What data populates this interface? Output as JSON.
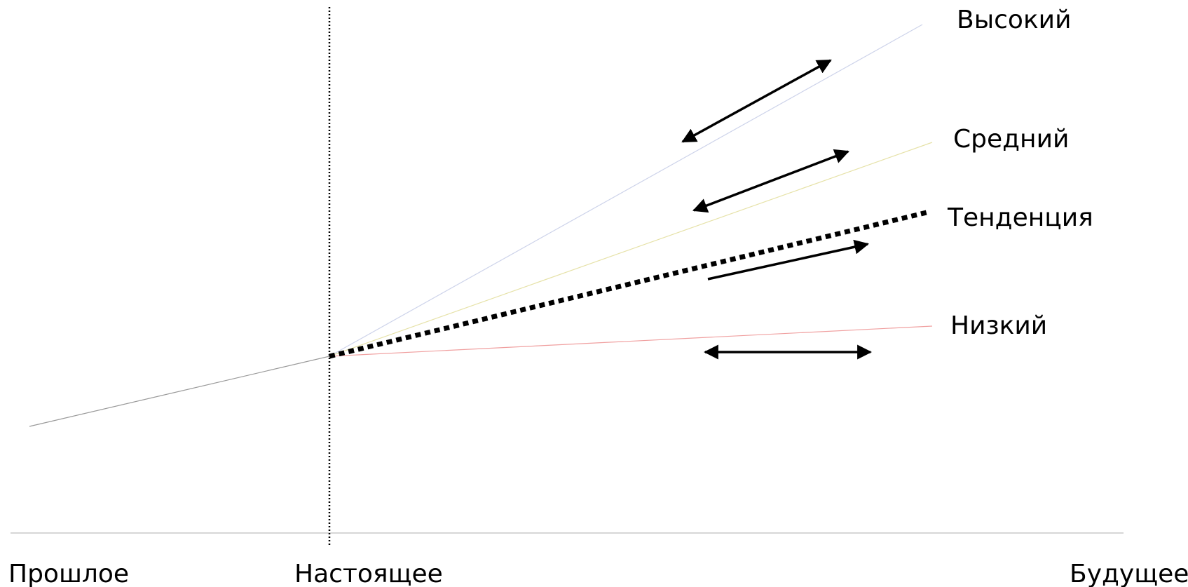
{
  "scenarios": {
    "high": {
      "label": "Высокий",
      "color": "#cdd3ea"
    },
    "medium": {
      "label": "Средний",
      "color": "#e6e2a8"
    },
    "trend": {
      "label": "Тенденция",
      "color": "#000000"
    },
    "low": {
      "label": "Низкий",
      "color": "#f0a0a0"
    }
  },
  "history": {
    "color": "#999999"
  },
  "timeline": {
    "past": "Прошлое",
    "present": "Настоящее",
    "future": "Будущее"
  },
  "arrow_color": "#000000"
}
